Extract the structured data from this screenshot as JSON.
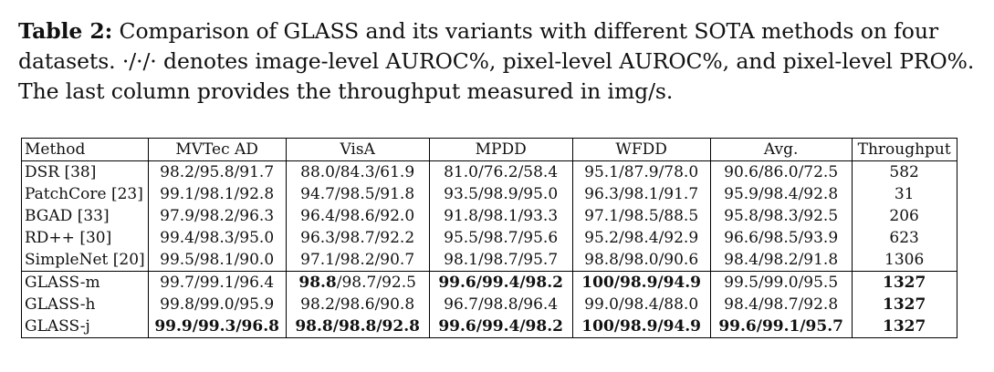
{
  "caption": {
    "label": "Table 2:",
    "text": " Comparison of GLASS and its variants with different SOTA methods on four datasets. ·/·/· denotes image-level AUROC%, pixel-level AUROC%, and pixel-level PRO%. The last column provides the throughput measured in img/s."
  },
  "table": {
    "headers": [
      "Method",
      "MVTec AD",
      "VisA",
      "MPDD",
      "WFDD",
      "Avg.",
      "Throughput"
    ],
    "rows": [
      {
        "method": "DSR [38]",
        "cells": [
          [
            "98.2/95.8/91.7"
          ],
          [
            "88.0/84.3/61.9"
          ],
          [
            "81.0/76.2/58.4"
          ],
          [
            "95.1/87.9/78.0"
          ],
          [
            "90.6/86.0/72.5"
          ],
          [
            "582"
          ]
        ]
      },
      {
        "method": "PatchCore [23]",
        "cells": [
          [
            "99.1/98.1/92.8"
          ],
          [
            "94.7/98.5/91.8"
          ],
          [
            "93.5/98.9/95.0"
          ],
          [
            "96.3/98.1/91.7"
          ],
          [
            "95.9/98.4/92.8"
          ],
          [
            "31"
          ]
        ]
      },
      {
        "method": "BGAD [33]",
        "cells": [
          [
            "97.9/98.2/96.3"
          ],
          [
            "96.4/98.6/92.0"
          ],
          [
            "91.8/98.1/93.3"
          ],
          [
            "97.1/98.5/88.5"
          ],
          [
            "95.8/98.3/92.5"
          ],
          [
            "206"
          ]
        ]
      },
      {
        "method": "RD++ [30]",
        "cells": [
          [
            "99.4/98.3/95.0"
          ],
          [
            "96.3/98.7/92.2"
          ],
          [
            "95.5/98.7/95.6"
          ],
          [
            "95.2/98.4/92.9"
          ],
          [
            "96.6/98.5/93.9"
          ],
          [
            "623"
          ]
        ]
      },
      {
        "method": "SimpleNet [20]",
        "cells": [
          [
            "99.5/98.1/90.0"
          ],
          [
            "97.1/98.2/90.7"
          ],
          [
            "98.1/98.7/95.7"
          ],
          [
            "98.8/98.0/90.6"
          ],
          [
            "98.4/98.2/91.8"
          ],
          [
            "1306"
          ]
        ]
      },
      {
        "method": "GLASS-m",
        "sep": true,
        "cells": [
          [
            "99.7/99.1/96.4"
          ],
          [
            "**98.8",
            "/98.7/92.5"
          ],
          [
            "**99.6/99.4/98.2"
          ],
          [
            "**100/98.9/94.9"
          ],
          [
            "99.5/99.0/95.5"
          ],
          [
            "**1327"
          ]
        ]
      },
      {
        "method": "GLASS-h",
        "cells": [
          [
            "99.8/99.0/95.9"
          ],
          [
            "98.2/98.6/90.8"
          ],
          [
            "96.7/98.8/96.4"
          ],
          [
            "99.0/98.4/88.0"
          ],
          [
            "98.4/98.7/92.8"
          ],
          [
            "**1327"
          ]
        ]
      },
      {
        "method": "GLASS-j",
        "cells": [
          [
            "**99.9/99.3/96.8"
          ],
          [
            "**98.8/98.8/92.8"
          ],
          [
            "**99.6/99.4/98.2"
          ],
          [
            "**100/98.9/94.9"
          ],
          [
            "**99.6/99.1/95.7"
          ],
          [
            "**1327"
          ]
        ]
      }
    ]
  }
}
